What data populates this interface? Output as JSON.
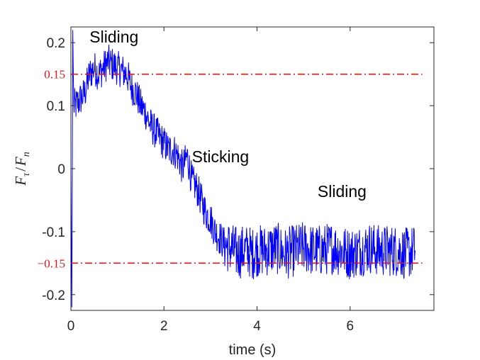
{
  "chart_data": {
    "type": "line",
    "title": "",
    "xlabel": "time (s)",
    "ylabel": "F_τ / F_n",
    "ylabel_parts": {
      "num": "F",
      "num_sub": "τ",
      "slash": "/",
      "den": "F",
      "den_sub": "n"
    },
    "xlim": [
      0,
      7.8
    ],
    "ylim": [
      -0.225,
      0.225
    ],
    "xticks": [
      0,
      2,
      4,
      6
    ],
    "xtick_labels": [
      "0",
      "2",
      "4",
      "6"
    ],
    "yticks": [
      -0.2,
      -0.1,
      0,
      0.1,
      0.2
    ],
    "ytick_labels": [
      "-0.2",
      "-0.1",
      "0",
      "0.1",
      "0.2"
    ],
    "grid": false,
    "series": [
      {
        "color": "#0000ff",
        "x": [
          0,
          0.02,
          0.04,
          0.06,
          0.1,
          0.2,
          0.3,
          0.4,
          0.5,
          0.6,
          0.7,
          0.8,
          0.9,
          1.0,
          1.1,
          1.2,
          1.3,
          1.4,
          1.5,
          1.6,
          1.7,
          1.8,
          1.9,
          2.0,
          2.1,
          2.2,
          2.3,
          2.4,
          2.5,
          2.6,
          2.7,
          2.8,
          2.9,
          3.0,
          3.1,
          3.2,
          3.3,
          3.4,
          3.5,
          3.6,
          3.7,
          3.8,
          3.9,
          4.0,
          4.2,
          4.4,
          4.6,
          4.8,
          5.0,
          5.2,
          5.4,
          5.6,
          5.8,
          6.0,
          6.2,
          6.4,
          6.6,
          6.8,
          7.0,
          7.2,
          7.4
        ],
        "y": [
          0,
          -0.22,
          0.22,
          0.1,
          0.1,
          0.11,
          0.12,
          0.15,
          0.16,
          0.15,
          0.16,
          0.17,
          0.165,
          0.16,
          0.155,
          0.15,
          0.13,
          0.12,
          0.1,
          0.09,
          0.07,
          0.06,
          0.05,
          0.04,
          0.03,
          0.03,
          0.02,
          0.0,
          0.02,
          -0.02,
          -0.03,
          -0.05,
          -0.07,
          -0.08,
          -0.1,
          -0.11,
          -0.12,
          -0.125,
          -0.13,
          -0.135,
          -0.13,
          -0.13,
          -0.135,
          -0.13,
          -0.13,
          -0.125,
          -0.135,
          -0.13,
          -0.125,
          -0.13,
          -0.13,
          -0.125,
          -0.13,
          -0.135,
          -0.13,
          -0.125,
          -0.13,
          -0.13,
          -0.13,
          -0.135,
          -0.13
        ],
        "noise_amplitude": 0.035
      }
    ],
    "reference_lines": [
      {
        "y": 0.15,
        "label": "0.15",
        "color": "#e0141a",
        "style": "dash-dot"
      },
      {
        "y": -0.15,
        "label": "−0.15",
        "color": "#e0141a",
        "style": "dash-dot"
      }
    ],
    "annotations": [
      {
        "text": "Sliding",
        "x": 0.4,
        "y": 0.2
      },
      {
        "text": "Sticking",
        "x": 2.6,
        "y": 0.01
      },
      {
        "text": "Sliding",
        "x": 5.3,
        "y": -0.045
      }
    ]
  }
}
